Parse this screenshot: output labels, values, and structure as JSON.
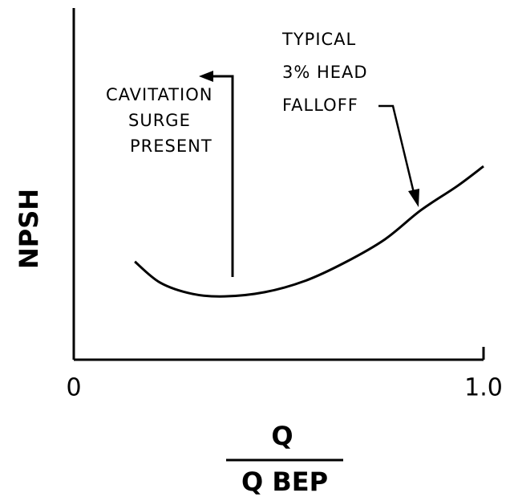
{
  "chart_data": {
    "type": "line",
    "ylabel": "NPSH",
    "xlabel": {
      "numerator": "Q",
      "denominator": "Q BEP"
    },
    "x": [
      0.149,
      0.211,
      0.29,
      0.368,
      0.466,
      0.564,
      0.661,
      0.759,
      0.847,
      0.935,
      1.0
    ],
    "values": [
      0.279,
      0.219,
      0.187,
      0.18,
      0.192,
      0.224,
      0.276,
      0.342,
      0.425,
      0.493,
      0.55
    ],
    "color": "#000000",
    "xlim": [
      0,
      1
    ],
    "xticks": [
      0,
      {
        "value": 1,
        "label": "1.0"
      }
    ],
    "ylim": [
      0,
      1
    ],
    "annotations": [
      [
        "CAVITATION",
        "SURGE",
        "PRESENT"
      ],
      [
        "TYPICAL",
        "3% HEAD",
        "FALLOFF"
      ]
    ]
  }
}
